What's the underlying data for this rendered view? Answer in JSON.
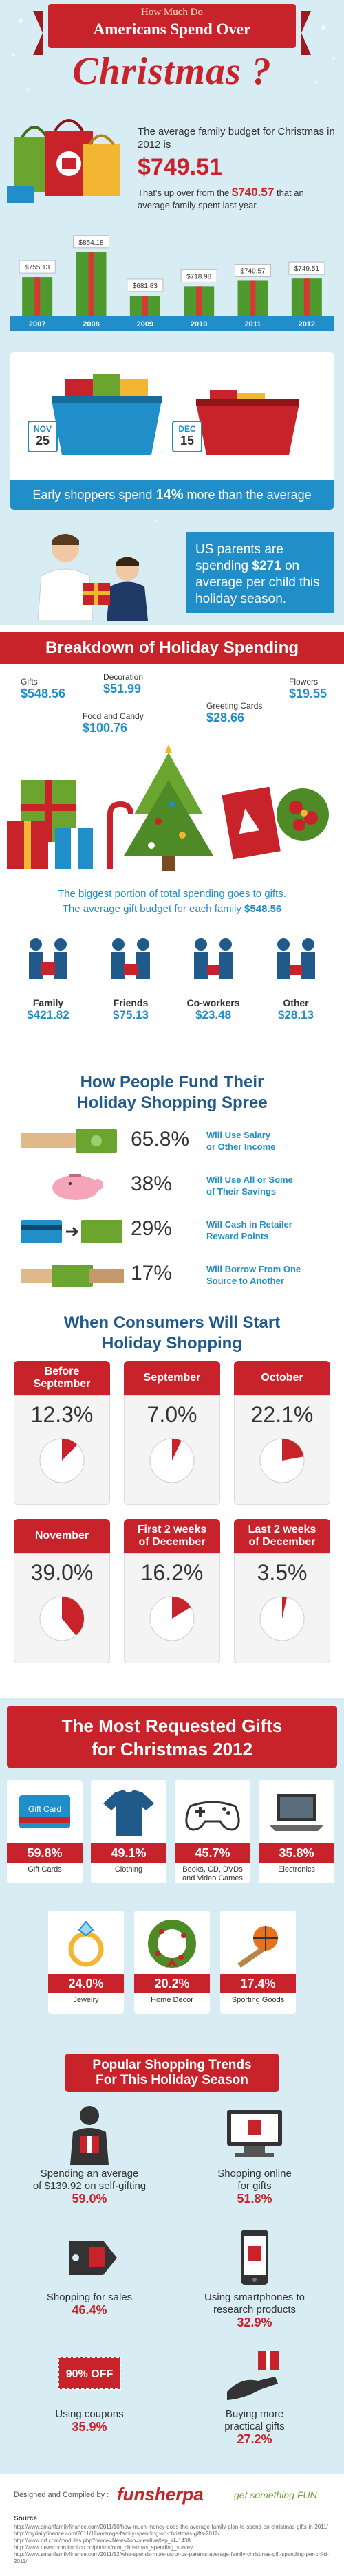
{
  "header": {
    "line1": "How Much Do",
    "line2": "Americans Spend Over",
    "line3": "Christmas ?"
  },
  "budget": {
    "intro": "The average family budget for Christmas in 2012 is",
    "amount": "$749.51",
    "up_text_before": "That's up over from the",
    "up_amount": "$740.57",
    "up_text_after": "that an average family spent last year.",
    "chart_data": {
      "type": "bar",
      "categories": [
        "2007",
        "2008",
        "2009",
        "2010",
        "2011",
        "2012"
      ],
      "value_labels": [
        "$755.13",
        "$854.18",
        "$681.83",
        "$718.98",
        "$740.57",
        "$749.51"
      ],
      "values": [
        755.13,
        854.18,
        681.83,
        718.98,
        740.57,
        749.51
      ],
      "ylim": [
        600,
        900
      ],
      "colors": {
        "bar": "#4e9a2e",
        "ribbon": "#d43a33",
        "label_bg": "#ffffff"
      }
    }
  },
  "early": {
    "date1_month": "NOV",
    "date1_day": "25",
    "date2_month": "DEC",
    "date2_day": "15",
    "strip_before": "Early shoppers spend",
    "strip_pct": "14%",
    "strip_after": "more than the average shopper."
  },
  "parents": {
    "line1": "US parents are spending",
    "amount": "$271",
    "line2": "on average per child this holiday season."
  },
  "breakdown": {
    "title": "Breakdown of Holiday Spending",
    "items": [
      {
        "label": "Gifts",
        "value": "$548.56"
      },
      {
        "label": "Decoration",
        "value": "$51.99"
      },
      {
        "label": "Food and Candy",
        "value": "$100.76"
      },
      {
        "label": "Greeting Cards",
        "value": "$28.66"
      },
      {
        "label": "Flowers",
        "value": "$19.55"
      }
    ],
    "summary_line1": "The biggest portion of total spending goes to gifts.",
    "summary_line2_before": "The average gift budget for each family",
    "summary_amount": "$548.56",
    "family": [
      {
        "label": "Family",
        "value": "$421.82"
      },
      {
        "label": "Friends",
        "value": "$75.13"
      },
      {
        "label": "Co-workers",
        "value": "$23.48"
      },
      {
        "label": "Other",
        "value": "$28.13"
      }
    ]
  },
  "fund": {
    "title_line1": "How People Fund Their",
    "title_line2": "Holiday Shopping Spree",
    "rows": [
      {
        "pct": "65.8%",
        "text1": "Will Use Salary",
        "text2": "or Other Income",
        "icon": "money-hand-icon"
      },
      {
        "pct": "38%",
        "text1": "Will Use All or Some",
        "text2": "of Their Savings",
        "icon": "piggy-bank-icon"
      },
      {
        "pct": "29%",
        "text1": "Will Cash in Retailer",
        "text2": "Reward Points",
        "icon": "card-cash-icon"
      },
      {
        "pct": "17%",
        "text1": "Will Borrow From One",
        "text2": "Source to Another",
        "icon": "borrow-hand-icon"
      }
    ]
  },
  "when": {
    "title_line1": "When Consumers Will Start",
    "title_line2": "Holiday Shopping",
    "items": [
      {
        "head1": "Before",
        "head2": "September",
        "pct": "12.3%",
        "value": 12.3
      },
      {
        "head1": "September",
        "head2": "",
        "pct": "7.0%",
        "value": 7.0
      },
      {
        "head1": "October",
        "head2": "",
        "pct": "22.1%",
        "value": 22.1
      },
      {
        "head1": "November",
        "head2": "",
        "pct": "39.0%",
        "value": 39.0
      },
      {
        "head1": "First 2 weeks",
        "head2": "of December",
        "pct": "16.2%",
        "value": 16.2
      },
      {
        "head1": "Last 2 weeks",
        "head2": "of December",
        "pct": "3.5%",
        "value": 3.5
      }
    ],
    "colors": {
      "pie_fill": "#c8222a",
      "pie_bg": "#ffffff"
    }
  },
  "gifts": {
    "title_line1": "The Most Requested Gifts",
    "title_line2": "for Christmas 2012",
    "items": [
      {
        "pct": "59.8%",
        "label1": "Gift Cards",
        "label2": "",
        "icon": "gift-card-icon",
        "card_text": "Gift Card"
      },
      {
        "pct": "49.1%",
        "label1": "Clothing",
        "label2": "",
        "icon": "shirt-icon"
      },
      {
        "pct": "45.7%",
        "label1": "Books, CD, DVDs",
        "label2": "and Video Games",
        "icon": "game-controller-icon"
      },
      {
        "pct": "35.8%",
        "label1": "Electronics",
        "label2": "",
        "icon": "laptop-icon"
      },
      {
        "pct": "24.0%",
        "label1": "Jewelry",
        "label2": "",
        "icon": "ring-icon"
      },
      {
        "pct": "20.2%",
        "label1": "Home Decor",
        "label2": "",
        "icon": "wreath-icon"
      },
      {
        "pct": "17.4%",
        "label1": "Sporting Goods",
        "label2": "",
        "icon": "ball-icon"
      }
    ]
  },
  "trends": {
    "title_line1": "Popular Shopping Trends",
    "title_line2": "For This Holiday Season",
    "items": [
      {
        "line1": "Spending an average",
        "line2": "of $139.92 on self-gifting",
        "pct": "59.0%",
        "icon": "self-gift-icon"
      },
      {
        "line1": "Shopping online",
        "line2": "for gifts",
        "pct": "51.8%",
        "icon": "online-shopping-icon"
      },
      {
        "line1": "Shopping for sales",
        "line2": "",
        "pct": "46.4%",
        "icon": "sale-tag-icon"
      },
      {
        "line1": "Using smartphones to",
        "line2": "research products",
        "pct": "32.9%",
        "icon": "smartphone-icon"
      },
      {
        "line1": "Using coupons",
        "line2": "",
        "pct": "35.9%",
        "icon": "coupon-icon",
        "coupon_text": "90% OFF"
      },
      {
        "line1": "Buying more",
        "line2": "practical gifts",
        "pct": "27.2%",
        "icon": "practical-gift-icon"
      }
    ]
  },
  "footer": {
    "credit": "Designed and Compiled by :",
    "brand": "funsherpa",
    "tagline": "get something FUN",
    "source_title": "Source",
    "sources": [
      "http://www.smartfamilyfinance.com/2011/10/how-much-money-does-the-average-family-plan-to-spend-on-christmas-gifts-in-2011/",
      "http://mydailyfinance.com/2011/12/average-family-spending-on-christmas-gifts-2012/",
      "http://www.nrf.com/modules.php?name=News&op=viewlive&sp_id=1438",
      "http://www.newsroom.kohl.co.co/photos/nrm_christmas_spending_survey",
      "http://www.smartfamilyfinance.com/2011/12/who-spends-more-us-or-us-parents-average-family-christmas-gift-spending-per-child-2011/"
    ]
  }
}
